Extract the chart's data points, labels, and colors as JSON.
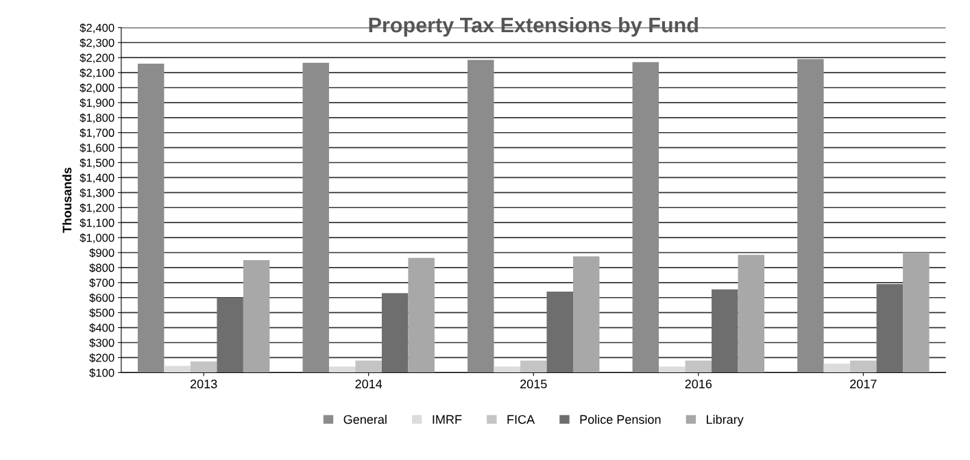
{
  "chart_data": {
    "type": "bar",
    "title": "Property Tax Extensions by Fund",
    "ylabel": "Thousands",
    "categories": [
      "2013",
      "2014",
      "2015",
      "2016",
      "2017"
    ],
    "series": [
      {
        "name": "General",
        "color": "#8c8c8c",
        "values": [
          2160,
          2165,
          2185,
          2170,
          2190
        ]
      },
      {
        "name": "IMRF",
        "color": "#dcdcdc",
        "values": [
          145,
          140,
          140,
          140,
          160
        ]
      },
      {
        "name": "FICA",
        "color": "#c4c4c4",
        "values": [
          175,
          180,
          180,
          180,
          180
        ]
      },
      {
        "name": "Police Pension",
        "color": "#6e6e6e",
        "values": [
          600,
          630,
          640,
          655,
          690
        ]
      },
      {
        "name": "Library",
        "color": "#a8a8a8",
        "values": [
          850,
          865,
          875,
          885,
          900
        ]
      }
    ],
    "ylim": [
      100,
      2400
    ],
    "yticks": [
      {
        "value": 100,
        "label": "$100"
      },
      {
        "value": 200,
        "label": "$200"
      },
      {
        "value": 300,
        "label": "$300"
      },
      {
        "value": 400,
        "label": "$400"
      },
      {
        "value": 500,
        "label": "$500"
      },
      {
        "value": 600,
        "label": "$600"
      },
      {
        "value": 700,
        "label": "$700"
      },
      {
        "value": 800,
        "label": "$800"
      },
      {
        "value": 900,
        "label": "$900"
      },
      {
        "value": 1000,
        "label": "$1,000"
      },
      {
        "value": 1100,
        "label": "$1,100"
      },
      {
        "value": 1200,
        "label": "$1,200"
      },
      {
        "value": 1300,
        "label": "$1,300"
      },
      {
        "value": 1400,
        "label": "$1,400"
      },
      {
        "value": 1500,
        "label": "$1,500"
      },
      {
        "value": 1600,
        "label": "$1,600"
      },
      {
        "value": 1700,
        "label": "$1,700"
      },
      {
        "value": 1800,
        "label": "$1,800"
      },
      {
        "value": 1900,
        "label": "$1,900"
      },
      {
        "value": 2000,
        "label": "$2,000"
      },
      {
        "value": 2100,
        "label": "$2,100"
      },
      {
        "value": 2200,
        "label": "$2,200"
      },
      {
        "value": 2300,
        "label": "$2,300"
      },
      {
        "value": 2400,
        "label": "$2,400"
      }
    ],
    "grid": "y",
    "legend": "bottom"
  }
}
